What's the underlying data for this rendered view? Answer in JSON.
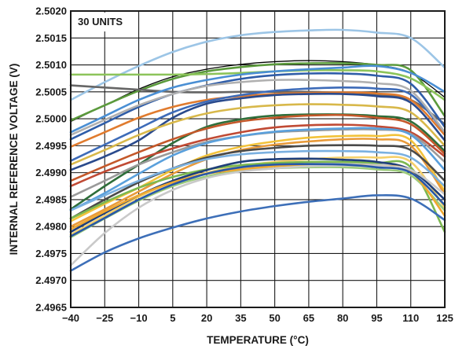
{
  "chart_data": {
    "type": "line",
    "title": "",
    "xlabel": "TEMPERATURE (°C)",
    "ylabel": "INTERNAL REFERENCE VOLTAGE (V)",
    "annotation": "30 UNITS",
    "x_ticks": [
      "−40",
      "−25",
      "−10",
      "5",
      "20",
      "35",
      "50",
      "65",
      "80",
      "95",
      "110",
      "125"
    ],
    "y_ticks": [
      "2.4965",
      "2.4970",
      "2.4975",
      "2.4980",
      "2.4985",
      "2.4990",
      "2.4995",
      "2.5000",
      "2.5005",
      "2.5010",
      "2.5015",
      "2.5020"
    ],
    "xlim": [
      -40,
      125
    ],
    "ylim": [
      2.4965,
      2.502
    ],
    "grid": true,
    "legend": "none",
    "x": [
      -40,
      -25,
      -10,
      5,
      20,
      35,
      50,
      65,
      80,
      95,
      110,
      125
    ],
    "series": [
      {
        "color": "#9cc5e6",
        "values": [
          2.50035,
          2.50068,
          2.50098,
          2.50124,
          2.50143,
          2.50155,
          2.50161,
          2.50164,
          2.50165,
          2.5016,
          2.5015,
          2.50095
        ]
      },
      {
        "color": "#000000",
        "values": [
          2.49995,
          2.50025,
          2.50055,
          2.50078,
          2.50092,
          2.50101,
          2.50106,
          2.50108,
          2.50106,
          2.501,
          2.50085,
          2.5004
        ]
      },
      {
        "color": "#5b9a3c",
        "values": [
          2.49997,
          2.50025,
          2.50052,
          2.50074,
          2.50088,
          2.50096,
          2.50101,
          2.50103,
          2.50103,
          2.501,
          2.5009,
          2.50005
        ]
      },
      {
        "color": "#8cc45a",
        "values": [
          2.50082,
          2.50082,
          2.50082,
          2.50082,
          2.50083,
          2.50085,
          2.50088,
          2.5009,
          2.5009,
          2.50088,
          2.50075,
          2.50035
        ]
      },
      {
        "color": "#666666",
        "values": [
          2.50062,
          2.50058,
          2.50054,
          2.5005,
          2.50049,
          2.5005,
          2.5005,
          2.5005,
          2.50048,
          2.50045,
          2.50035,
          2.4999
        ]
      },
      {
        "color": "#4a8fd4",
        "values": [
          2.49975,
          2.50005,
          2.50035,
          2.50058,
          2.50072,
          2.50082,
          2.50088,
          2.50092,
          2.50095,
          2.50098,
          2.50085,
          2.5005
        ]
      },
      {
        "color": "#2f5da8",
        "values": [
          2.49962,
          2.49992,
          2.50022,
          2.50046,
          2.50062,
          2.50074,
          2.50081,
          2.50084,
          2.50084,
          2.5008,
          2.50065,
          2.49985
        ]
      },
      {
        "color": "#e07b2e",
        "values": [
          2.49948,
          2.49975,
          2.50002,
          2.50022,
          2.50035,
          2.50042,
          2.50046,
          2.50048,
          2.50049,
          2.50047,
          2.50035,
          2.4997
        ]
      },
      {
        "color": "#2a4a8c",
        "values": [
          2.49905,
          2.4993,
          2.4996,
          2.50002,
          2.50028,
          2.50038,
          2.50044,
          2.50046,
          2.50046,
          2.50042,
          2.5003,
          2.4996
        ]
      },
      {
        "color": "#3d6bb8",
        "values": [
          2.49922,
          2.49952,
          2.49982,
          2.50012,
          2.50032,
          2.50044,
          2.50052,
          2.50056,
          2.50058,
          2.50056,
          2.50045,
          2.49975
        ]
      },
      {
        "color": "#b0b0b0",
        "values": [
          2.4997,
          2.49998,
          2.50025,
          2.50046,
          2.50061,
          2.50068,
          2.50072,
          2.50072,
          2.5007,
          2.50066,
          2.50052,
          2.49975
        ]
      },
      {
        "color": "#d8b84a",
        "values": [
          2.49915,
          2.49942,
          2.4997,
          2.49993,
          2.5001,
          2.5002,
          2.50025,
          2.50027,
          2.50026,
          2.50023,
          2.50012,
          2.4995
        ]
      },
      {
        "color": "#2e6e3a",
        "values": [
          2.49832,
          2.49875,
          2.49915,
          2.49955,
          2.49985,
          2.49999,
          2.50006,
          2.50008,
          2.50008,
          2.50005,
          2.49995,
          2.4994
        ]
      },
      {
        "color": "#c4582a",
        "values": [
          2.49885,
          2.49912,
          2.49938,
          2.49962,
          2.49982,
          2.49995,
          2.50002,
          2.50006,
          2.50007,
          2.50002,
          2.4999,
          2.49935
        ]
      },
      {
        "color": "#c04a34",
        "values": [
          2.49875,
          2.49902,
          2.49925,
          2.49945,
          2.49962,
          2.49975,
          2.49984,
          2.49988,
          2.49989,
          2.49986,
          2.49975,
          2.4993
        ]
      },
      {
        "color": "#9a9a9a",
        "values": [
          2.49855,
          2.49885,
          2.49915,
          2.49938,
          2.49957,
          2.49968,
          2.49975,
          2.49978,
          2.4998,
          2.4998,
          2.49972,
          2.4992
        ]
      },
      {
        "color": "#5aa0dc",
        "values": [
          2.4983,
          2.49862,
          2.49898,
          2.49932,
          2.49955,
          2.49968,
          2.49976,
          2.4998,
          2.49982,
          2.49982,
          2.4997,
          2.49905
        ]
      },
      {
        "color": "#f2c23a",
        "values": [
          2.4981,
          2.49842,
          2.49872,
          2.49905,
          2.49932,
          2.49948,
          2.49958,
          2.49965,
          2.49968,
          2.49968,
          2.4996,
          2.49865
        ]
      },
      {
        "color": "#e89a3a",
        "values": [
          2.498,
          2.49832,
          2.49865,
          2.49898,
          2.49925,
          2.49942,
          2.49952,
          2.49958,
          2.49962,
          2.49962,
          2.4995,
          2.4986
        ]
      },
      {
        "color": "#4a4a4a",
        "values": [
          2.49815,
          2.4985,
          2.49882,
          2.49908,
          2.49928,
          2.4994,
          2.49946,
          2.4995,
          2.49951,
          2.4995,
          2.49942,
          2.49885
        ]
      },
      {
        "color": "#7ab0e0",
        "values": [
          2.4983,
          2.49858,
          2.49885,
          2.49908,
          2.49925,
          2.49934,
          2.49938,
          2.4994,
          2.4994,
          2.49938,
          2.49928,
          2.49875
        ]
      },
      {
        "color": "#f5d06a",
        "values": [
          2.49785,
          2.4982,
          2.49855,
          2.49882,
          2.499,
          2.49912,
          2.4992,
          2.49925,
          2.49928,
          2.49928,
          2.4992,
          2.49835
        ]
      },
      {
        "color": "#c8c8c8",
        "values": [
          2.4979,
          2.49825,
          2.49858,
          2.49882,
          2.49898,
          2.49908,
          2.49915,
          2.49918,
          2.49918,
          2.49915,
          2.49905,
          2.4985
        ]
      },
      {
        "color": "#7cb850",
        "values": [
          2.49815,
          2.49845,
          2.49872,
          2.49892,
          2.49906,
          2.49914,
          2.49918,
          2.4992,
          2.4992,
          2.49918,
          2.4991,
          2.4979
        ]
      },
      {
        "color": "#9ccb7c",
        "values": [
          2.4978,
          2.49815,
          2.49848,
          2.49875,
          2.49893,
          2.49903,
          2.49908,
          2.4991,
          2.4991,
          2.49906,
          2.49895,
          2.4983
        ]
      },
      {
        "color": "#1f3f7a",
        "values": [
          2.4979,
          2.49825,
          2.49858,
          2.49885,
          2.49905,
          2.4992,
          2.49925,
          2.49926,
          2.49924,
          2.4992,
          2.49905,
          2.4985
        ]
      },
      {
        "color": "#f0a830",
        "values": [
          2.49795,
          2.49828,
          2.49858,
          2.49882,
          2.49898,
          2.49906,
          2.49912,
          2.49914,
          2.49914,
          2.49912,
          2.49902,
          2.4982
        ]
      },
      {
        "color": "#c9c9c9",
        "values": [
          2.49728,
          2.49788,
          2.49835,
          2.49868,
          2.4989,
          2.49902,
          2.49908,
          2.49912,
          2.49913,
          2.49912,
          2.49905,
          2.4986
        ]
      },
      {
        "color": "#2858a8",
        "values": [
          2.49782,
          2.49816,
          2.4985,
          2.49878,
          2.49898,
          2.4991,
          2.49915,
          2.49916,
          2.49915,
          2.4991,
          2.499,
          2.4984
        ]
      },
      {
        "color": "#3d6fb8",
        "values": [
          2.49718,
          2.49752,
          2.49778,
          2.49798,
          2.49815,
          2.49828,
          2.49838,
          2.49846,
          2.49852,
          2.49858,
          2.49852,
          2.49812
        ]
      }
    ]
  }
}
